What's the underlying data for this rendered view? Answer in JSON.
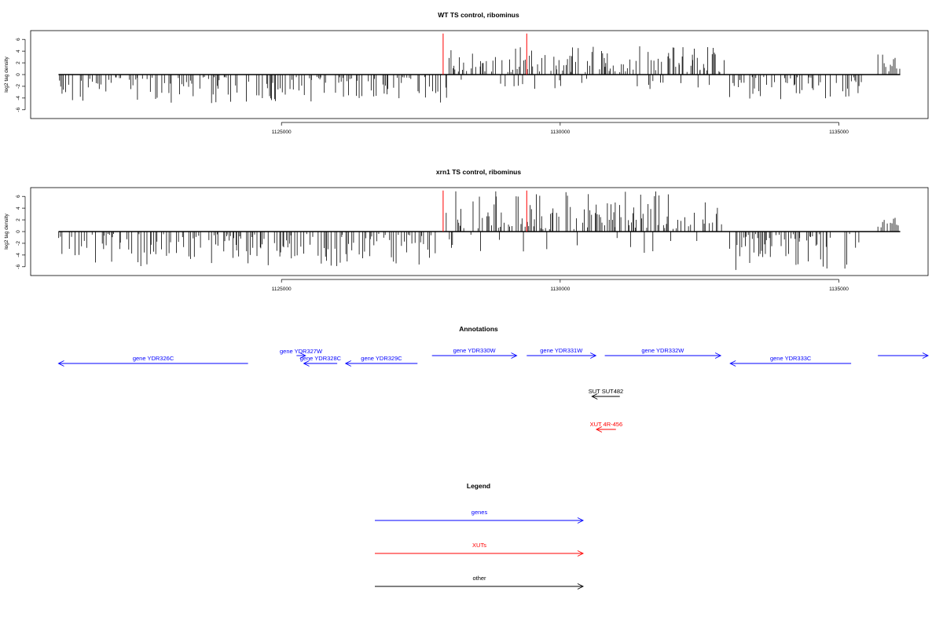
{
  "chart_data": [
    {
      "type": "bar",
      "title": "WT TS control, ribominus",
      "ylabel": "log2 tag density",
      "xlabel": "",
      "x_ticks": [
        1125000,
        1130000,
        1135000
      ],
      "y_ticks": [
        -6,
        -4,
        -2,
        0,
        2,
        4,
        6
      ],
      "xlim": [
        1120500,
        1136600
      ],
      "ylim": [
        -7.5,
        7.5
      ],
      "grid": false,
      "features": {
        "reverse_regions": [
          [
            1121000,
            1128000,
            4.5
          ],
          [
            1133000,
            1135400,
            3.8
          ]
        ],
        "forward_regions": [
          [
            1128000,
            1132950,
            4.5
          ]
        ],
        "end_region": [
          1135700,
          1136100,
          3
        ]
      },
      "highlight_positions": [
        1127900,
        1129400
      ],
      "highlight_color": "#ff0000",
      "highlight_value": 7
    },
    {
      "type": "bar",
      "title": "xrn1 TS control, ribominus",
      "ylabel": "log2 tag density",
      "xlabel": "",
      "x_ticks": [
        1125000,
        1130000,
        1135000
      ],
      "y_ticks": [
        -6,
        -4,
        -2,
        0,
        2,
        4,
        6
      ],
      "xlim": [
        1120500,
        1136600
      ],
      "ylim": [
        -7.5,
        7.5
      ],
      "grid": false,
      "features": {
        "reverse_regions": [
          [
            1121000,
            1127800,
            5.5
          ],
          [
            1133000,
            1135400,
            6.5
          ]
        ],
        "forward_regions": [
          [
            1127950,
            1132900,
            6.5
          ]
        ],
        "end_region": [
          1135700,
          1136100,
          2.2
        ]
      },
      "highlight_positions": [
        1127900,
        1129400
      ],
      "highlight_color": "#ff0000",
      "highlight_value": 7
    }
  ],
  "annotations": {
    "title": "Annotations",
    "colors": {
      "genes": "#0000ff",
      "XUTs": "#ff0000",
      "other": "#000000"
    },
    "features": [
      {
        "label": "gene YDR326C",
        "start": 1121000,
        "end": 1124400,
        "strand": "-",
        "type": "genes",
        "row": 1
      },
      {
        "label": "gene YDR327W",
        "start": 1125270,
        "end": 1125430,
        "strand": "+",
        "type": "genes",
        "row": 0
      },
      {
        "label": "gene YDR328C",
        "start": 1125400,
        "end": 1126000,
        "strand": "-",
        "type": "genes",
        "row": 1
      },
      {
        "label": "gene YDR329C",
        "start": 1126150,
        "end": 1127440,
        "strand": "-",
        "type": "genes",
        "row": 1
      },
      {
        "label": "gene YDR330W",
        "start": 1127700,
        "end": 1129220,
        "strand": "+",
        "type": "genes",
        "row": 0
      },
      {
        "label": "gene YDR331W",
        "start": 1129400,
        "end": 1130640,
        "strand": "+",
        "type": "genes",
        "row": 0
      },
      {
        "label": "gene YDR332W",
        "start": 1130800,
        "end": 1132880,
        "strand": "+",
        "type": "genes",
        "row": 0
      },
      {
        "label": "gene YDR333C",
        "start": 1133050,
        "end": 1135220,
        "strand": "-",
        "type": "genes",
        "row": 1
      },
      {
        "label": "",
        "start": 1135700,
        "end": 1136600,
        "strand": "+",
        "type": "genes",
        "row": 0
      },
      {
        "label": "SUT SUT482",
        "start": 1130570,
        "end": 1131070,
        "strand": "-",
        "type": "other",
        "row": 2
      },
      {
        "label": "XUT 4R-456",
        "start": 1130650,
        "end": 1131000,
        "strand": "-",
        "type": "XUTs",
        "row": 3
      }
    ]
  },
  "legend": {
    "title": "Legend",
    "items": [
      {
        "label": "genes",
        "color": "#0000ff"
      },
      {
        "label": "XUTs",
        "color": "#ff0000"
      },
      {
        "label": "other",
        "color": "#000000"
      }
    ]
  }
}
